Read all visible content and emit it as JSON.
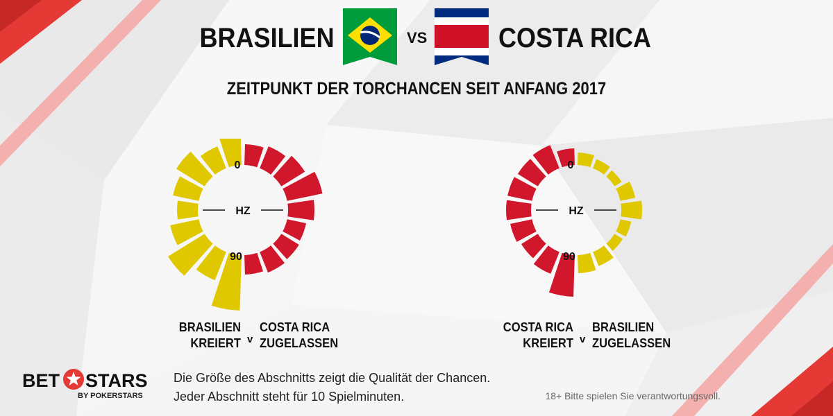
{
  "header": {
    "team_left": "BRASILIEN",
    "vs": "VS",
    "team_right": "COSTA RICA",
    "subtitle": "ZEITPUNKT DER TORCHANCEN SEIT ANFANG 2017"
  },
  "colors": {
    "brazil": "#e0c800",
    "costa_rica": "#d0172b",
    "accent_red": "#e53935"
  },
  "chart_data": [
    {
      "type": "radial-bar",
      "ring_labels": {
        "start": "0",
        "halftime": "HZ",
        "end": "90"
      },
      "caption_left": [
        "BRASILIEN",
        "KREIERT"
      ],
      "separator": "v",
      "caption_right": [
        "COSTA RICA",
        "ZUGELASSEN"
      ],
      "series": [
        {
          "name": "BRASILIEN KREIERT",
          "side": "left",
          "color": "#e0c800",
          "minutes": [
            "0-10",
            "10-20",
            "20-30",
            "30-40",
            "40-50",
            "50-60",
            "60-70",
            "70-80",
            "80-90"
          ],
          "values": [
            2.3,
            1.7,
            2.4,
            1.9,
            1.5,
            2.1,
            3.1,
            2.2,
            4.0
          ]
        },
        {
          "name": "COSTA RICA ZUGELASSEN",
          "side": "right",
          "color": "#d0172b",
          "minutes": [
            "0-10",
            "10-20",
            "20-30",
            "30-40",
            "40-50",
            "50-60",
            "60-70",
            "70-80",
            "80-90"
          ],
          "values": [
            1.5,
            1.7,
            2.0,
            2.6,
            1.9,
            1.4,
            1.5,
            1.6,
            1.4
          ]
        }
      ]
    },
    {
      "type": "radial-bar",
      "ring_labels": {
        "start": "0",
        "halftime": "HZ",
        "end": "90"
      },
      "caption_left": [
        "COSTA RICA",
        "KREIERT"
      ],
      "separator": "v",
      "caption_right": [
        "BRASILIEN",
        "ZUGELASSEN"
      ],
      "series": [
        {
          "name": "COSTA RICA KREIERT",
          "side": "left",
          "color": "#d0172b",
          "minutes": [
            "0-10",
            "10-20",
            "20-30",
            "30-40",
            "40-50",
            "50-60",
            "60-70",
            "70-80",
            "80-90"
          ],
          "values": [
            1.2,
            1.8,
            1.7,
            1.8,
            1.8,
            1.6,
            1.4,
            1.7,
            3.0
          ]
        },
        {
          "name": "BRASILIEN ZUGELASSEN",
          "side": "right",
          "color": "#e0c800",
          "minutes": [
            "0-10",
            "10-20",
            "20-30",
            "30-40",
            "40-50",
            "50-60",
            "60-70",
            "70-80",
            "80-90"
          ],
          "values": [
            0.9,
            0.7,
            0.6,
            1.1,
            1.5,
            0.8,
            0.7,
            1.1,
            1.3
          ]
        }
      ]
    }
  ],
  "footer": {
    "logo_left": "BET",
    "logo_right": "STARS",
    "logo_sub": "BY POKERSTARS",
    "note_1": "Die Größe des Abschnitts zeigt die Qualität der Chancen.",
    "note_2": "Jeder Abschnitt steht für 10 Spielminuten.",
    "legal": "18+ Bitte spielen Sie verantwortungsvoll."
  }
}
